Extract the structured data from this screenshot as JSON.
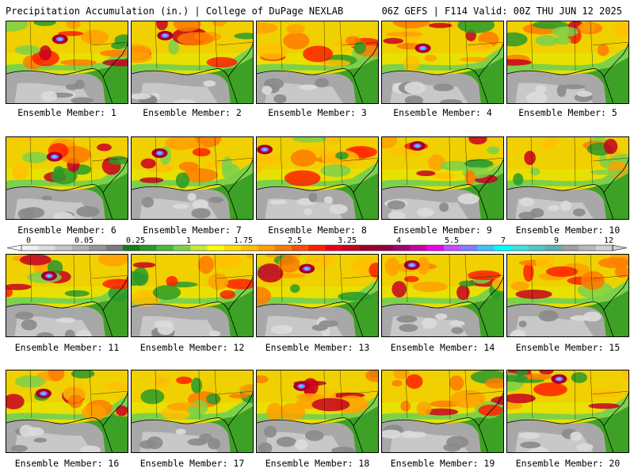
{
  "header": {
    "left": "Precipitation Accumulation (in.) | College of DuPage NEXLAB",
    "right": "06Z GEFS | F114 Valid: 00Z THU JUN 12 2025"
  },
  "member_label_prefix": "Ensemble Member: ",
  "members": [
    "1",
    "2",
    "3",
    "4",
    "5",
    "6",
    "7",
    "8",
    "9",
    "10",
    "11",
    "12",
    "13",
    "14",
    "15",
    "16",
    "17",
    "18",
    "19",
    "20"
  ],
  "colorbar": {
    "ticks": [
      "0",
      "0.05",
      "0.25",
      "1",
      "1.75",
      "2.5",
      "3.25",
      "4",
      "5.5",
      "7",
      "9",
      "12"
    ],
    "colors": [
      "#f0f0f0",
      "#dcdcdc",
      "#c6c6c6",
      "#b0b0b0",
      "#969696",
      "#7c7c7c",
      "#1f7a1f",
      "#2a9a2a",
      "#4cb83a",
      "#7cd14a",
      "#c6ea3a",
      "#ffff00",
      "#ffe000",
      "#ffc000",
      "#ffa000",
      "#ff7a00",
      "#ff5000",
      "#ff2000",
      "#e8001a",
      "#c80020",
      "#a00028",
      "#900040",
      "#a80070",
      "#c8009c",
      "#ee00ee",
      "#c050ff",
      "#8080ff",
      "#40c0ff",
      "#00ffff",
      "#40e0e0",
      "#50c8c8",
      "#60b0b0",
      "#a0a0a0",
      "#b8b8b8",
      "#d0d0d0"
    ]
  }
}
